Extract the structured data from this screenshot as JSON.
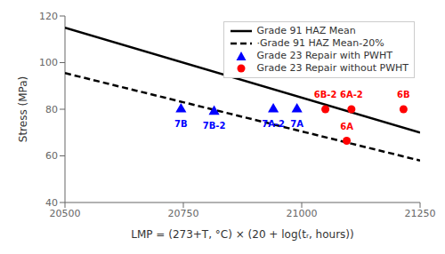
{
  "chart_data": {
    "type": "scatter",
    "xlabel": "LMP = (273+T, °C) × (20 + log(tᵣ, hours))",
    "ylabel": "Stress (MPa)",
    "xlim": [
      20500,
      21250
    ],
    "ylim": [
      40,
      120
    ],
    "xticks": [
      20500,
      20750,
      21000,
      21250
    ],
    "yticks": [
      40,
      60,
      80,
      100,
      120
    ],
    "grid": false,
    "legend": "upper right",
    "series": [
      {
        "name": "Grade 91 HAZ Mean",
        "type": "line",
        "color": "#000000",
        "line_style": "solid",
        "x": [
          20500,
          21250
        ],
        "values": [
          115,
          70
        ]
      },
      {
        "name": "·Grade 91 HAZ Mean-20%",
        "type": "line",
        "color": "#000000",
        "line_style": "dashed",
        "x": [
          20500,
          21250
        ],
        "values": [
          95.5,
          58
        ]
      },
      {
        "name": "Grade 23 Repair with PWHT",
        "type": "scatter",
        "color": "#0000FF",
        "marker": "triangle",
        "x": [
          20745,
          20815,
          20940,
          20990
        ],
        "values": [
          80,
          79,
          80,
          80
        ],
        "labels": [
          "7B",
          "7B-2",
          "7A-2",
          "7A"
        ]
      },
      {
        "name": "Grade 23 Repair without PWHT",
        "type": "scatter",
        "color": "#FF0000",
        "marker": "circle",
        "x": [
          21050,
          21105,
          21215,
          21095
        ],
        "values": [
          80,
          80,
          80,
          66.5
        ],
        "labels": [
          "6B-2",
          "6A-2",
          "6B",
          "6A"
        ]
      }
    ]
  }
}
